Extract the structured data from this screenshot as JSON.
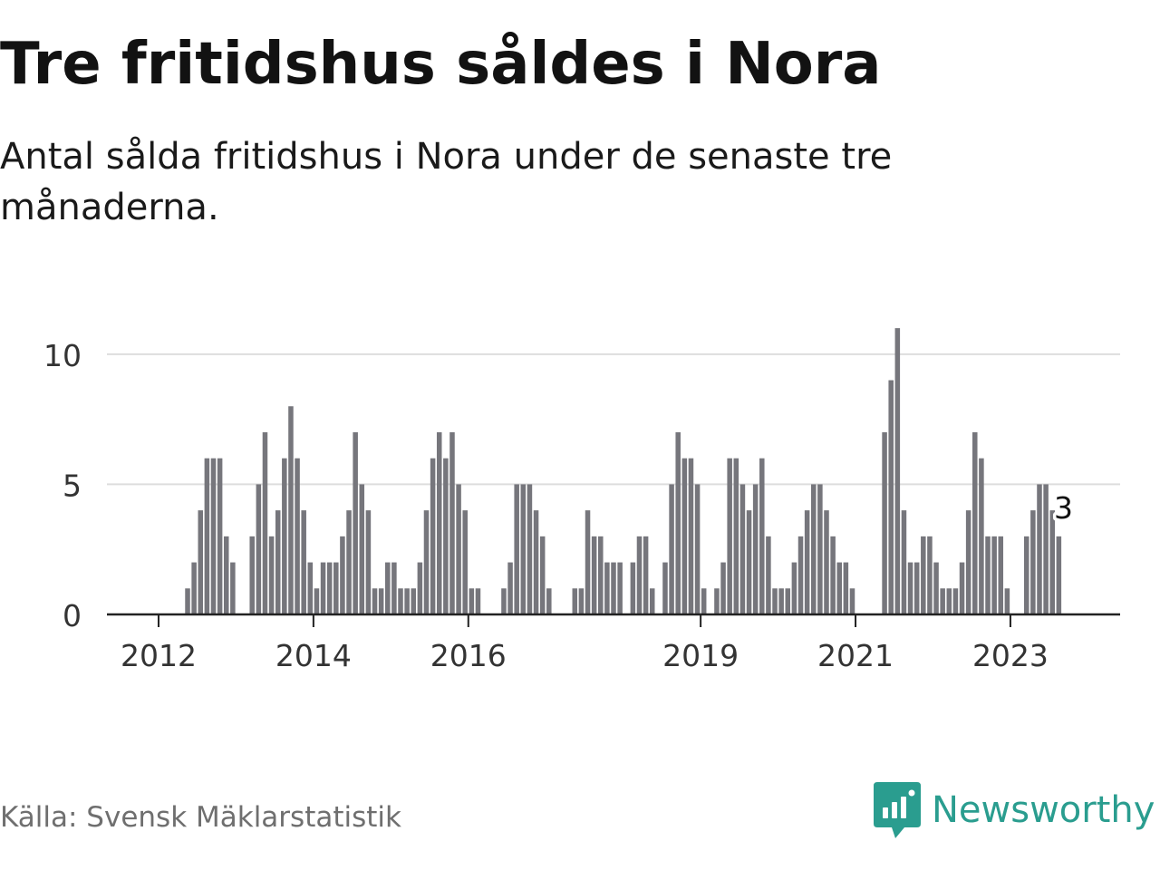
{
  "header": {
    "title": "Tre fritidshus såldes i Nora",
    "subtitle": "Antal sålda fritidshus i Nora under de senaste tre månaderna."
  },
  "footer": {
    "source": "Källa: Svensk Mäklarstatistik",
    "brand_name": "Newsworthy"
  },
  "colors": {
    "bar": "#76767c",
    "highlight": "#1d9a8c",
    "grid": "#dddddd",
    "axis": "#222222",
    "brand": "#2a9d8f"
  },
  "icons": {
    "brand_logo": "bar-chart-speech-bubble-icon"
  },
  "chart_data": {
    "type": "bar",
    "title": "Tre fritidshus såldes i Nora",
    "subtitle": "Antal sålda fritidshus i Nora under de senaste tre månaderna.",
    "x_unit": "month",
    "x_start": "2011-06",
    "xlim": [
      "2011-05",
      "2024-06"
    ],
    "ylim": [
      0,
      11.7
    ],
    "y_ticks": [
      0,
      5,
      10
    ],
    "x_ticks": [
      {
        "label": "2012",
        "month": "2012-01"
      },
      {
        "label": "2014",
        "month": "2014-01"
      },
      {
        "label": "2016",
        "month": "2016-01"
      },
      {
        "label": "2019",
        "month": "2019-01"
      },
      {
        "label": "2021",
        "month": "2021-01"
      },
      {
        "label": "2023",
        "month": "2023-01"
      }
    ],
    "grid": true,
    "values": [
      0,
      0,
      0,
      0,
      0,
      0,
      0,
      0,
      0,
      0,
      0,
      1,
      2,
      4,
      6,
      6,
      6,
      3,
      2,
      0,
      0,
      3,
      5,
      7,
      3,
      4,
      6,
      8,
      6,
      4,
      2,
      1,
      2,
      2,
      2,
      3,
      4,
      7,
      5,
      4,
      1,
      1,
      2,
      2,
      1,
      1,
      1,
      2,
      4,
      6,
      7,
      6,
      7,
      5,
      4,
      1,
      1,
      0,
      0,
      0,
      1,
      2,
      5,
      5,
      5,
      4,
      3,
      1,
      0,
      0,
      0,
      1,
      1,
      4,
      3,
      3,
      2,
      2,
      2,
      0,
      2,
      3,
      3,
      1,
      0,
      2,
      5,
      7,
      6,
      6,
      5,
      1,
      0,
      1,
      2,
      6,
      6,
      5,
      4,
      5,
      6,
      3,
      1,
      1,
      1,
      2,
      3,
      4,
      5,
      5,
      4,
      3,
      2,
      2,
      1,
      0,
      0,
      0,
      0,
      7,
      9,
      11,
      4,
      2,
      2,
      3,
      3,
      2,
      1,
      1,
      1,
      2,
      4,
      7,
      6,
      3,
      3,
      3,
      1,
      0,
      0,
      3,
      4,
      5,
      5,
      4,
      3
    ],
    "highlight": {
      "month": "2023-09",
      "value": 3,
      "label": "3"
    }
  }
}
